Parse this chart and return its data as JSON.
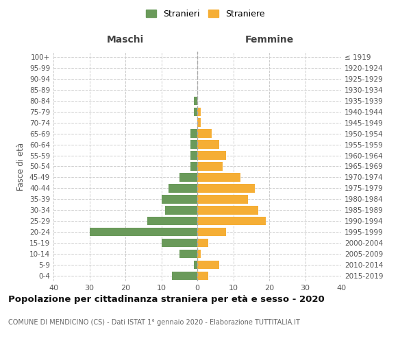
{
  "age_groups": [
    "0-4",
    "5-9",
    "10-14",
    "15-19",
    "20-24",
    "25-29",
    "30-34",
    "35-39",
    "40-44",
    "45-49",
    "50-54",
    "55-59",
    "60-64",
    "65-69",
    "70-74",
    "75-79",
    "80-84",
    "85-89",
    "90-94",
    "95-99",
    "100+"
  ],
  "birth_years": [
    "2015-2019",
    "2010-2014",
    "2005-2009",
    "2000-2004",
    "1995-1999",
    "1990-1994",
    "1985-1989",
    "1980-1984",
    "1975-1979",
    "1970-1974",
    "1965-1969",
    "1960-1964",
    "1955-1959",
    "1950-1954",
    "1945-1949",
    "1940-1944",
    "1935-1939",
    "1930-1934",
    "1925-1929",
    "1920-1924",
    "≤ 1919"
  ],
  "males": [
    7,
    1,
    5,
    10,
    30,
    14,
    9,
    10,
    8,
    5,
    2,
    2,
    2,
    2,
    0,
    1,
    1,
    0,
    0,
    0,
    0
  ],
  "females": [
    3,
    6,
    1,
    3,
    8,
    19,
    17,
    14,
    16,
    12,
    7,
    8,
    6,
    4,
    1,
    1,
    0,
    0,
    0,
    0,
    0
  ],
  "male_color": "#6a9a5a",
  "female_color": "#f5ae35",
  "male_label": "Stranieri",
  "female_label": "Straniere",
  "title": "Popolazione per cittadinanza straniera per età e sesso - 2020",
  "subtitle": "COMUNE DI MENDICINO (CS) - Dati ISTAT 1° gennaio 2020 - Elaborazione TUTTITALIA.IT",
  "label_maschi": "Maschi",
  "label_femmine": "Femmine",
  "ylabel_left": "Fasce di età",
  "xlim": 40,
  "background_color": "#ffffff",
  "grid_color": "#cccccc"
}
